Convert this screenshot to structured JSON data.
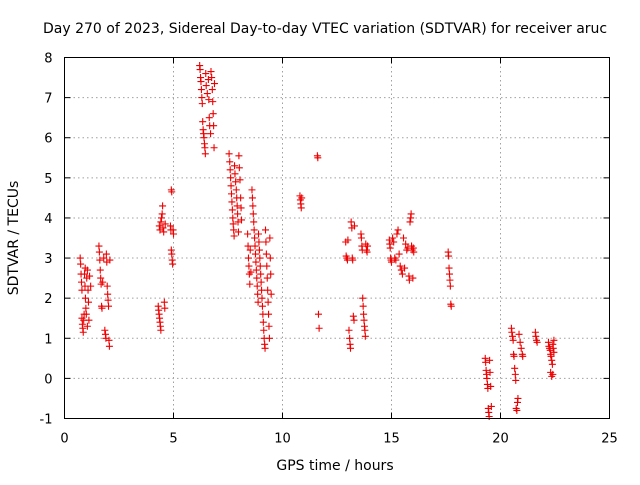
{
  "colors": {
    "series": "#ee0000",
    "grid": "#a0a0a0",
    "axis": "#000000",
    "background": "#ffffff"
  },
  "chart_data": {
    "type": "scatter",
    "title": "Day 270 of 2023, Sidereal Day-to-day VTEC variation (SDTVAR) for receiver aruc",
    "xlabel": "GPS time / hours",
    "ylabel": "SDTVAR / TECUs",
    "xlim": [
      0,
      25
    ],
    "ylim": [
      -1,
      8
    ],
    "xticks": [
      0,
      5,
      10,
      15,
      20,
      25
    ],
    "yticks": [
      -1,
      0,
      1,
      2,
      3,
      4,
      5,
      6,
      7,
      8
    ],
    "grid": true,
    "marker": "plus",
    "series": [
      {
        "name": "SDTVAR",
        "points": [
          [
            0.72,
            3.0
          ],
          [
            0.74,
            2.85
          ],
          [
            0.76,
            2.6
          ],
          [
            0.78,
            2.4
          ],
          [
            0.8,
            2.2
          ],
          [
            0.8,
            1.5
          ],
          [
            0.82,
            1.35
          ],
          [
            0.84,
            1.25
          ],
          [
            0.86,
            1.15
          ],
          [
            0.88,
            1.45
          ],
          [
            0.9,
            1.6
          ],
          [
            0.92,
            2.6
          ],
          [
            0.94,
            2.3
          ],
          [
            0.96,
            2.0
          ],
          [
            0.98,
            1.75
          ],
          [
            1.0,
            1.6
          ],
          [
            1.02,
            2.5
          ],
          [
            1.05,
            2.7
          ],
          [
            1.08,
            2.2
          ],
          [
            1.1,
            1.9
          ],
          [
            1.12,
            1.45
          ],
          [
            1.15,
            2.55
          ],
          [
            1.2,
            2.3
          ],
          [
            0.95,
            2.75
          ],
          [
            1.05,
            1.3
          ],
          [
            1.58,
            3.3
          ],
          [
            1.6,
            3.15
          ],
          [
            1.62,
            2.95
          ],
          [
            1.64,
            2.7
          ],
          [
            1.66,
            2.5
          ],
          [
            1.68,
            2.35
          ],
          [
            1.7,
            1.8
          ],
          [
            1.72,
            1.75
          ],
          [
            1.85,
            1.2
          ],
          [
            1.88,
            1.1
          ],
          [
            1.9,
            1.0
          ],
          [
            1.92,
            3.1
          ],
          [
            1.94,
            2.9
          ],
          [
            1.96,
            2.3
          ],
          [
            1.98,
            2.1
          ],
          [
            2.0,
            1.95
          ],
          [
            2.02,
            1.8
          ],
          [
            2.04,
            0.95
          ],
          [
            2.06,
            0.8
          ],
          [
            2.08,
            2.95
          ],
          [
            1.8,
            3.0
          ],
          [
            1.75,
            2.4
          ],
          [
            4.3,
            1.8
          ],
          [
            4.32,
            1.7
          ],
          [
            4.34,
            1.6
          ],
          [
            4.36,
            1.5
          ],
          [
            4.38,
            1.4
          ],
          [
            4.4,
            1.3
          ],
          [
            4.42,
            1.2
          ],
          [
            4.35,
            3.8
          ],
          [
            4.38,
            3.7
          ],
          [
            4.42,
            3.9
          ],
          [
            4.45,
            4.0
          ],
          [
            4.48,
            4.1
          ],
          [
            4.5,
            4.3
          ],
          [
            4.52,
            3.75
          ],
          [
            4.55,
            3.65
          ],
          [
            4.58,
            1.9
          ],
          [
            4.6,
            1.75
          ],
          [
            4.62,
            3.85
          ],
          [
            4.9,
            4.7
          ],
          [
            4.92,
            4.65
          ],
          [
            4.86,
            3.8
          ],
          [
            4.88,
            3.7
          ],
          [
            4.9,
            3.2
          ],
          [
            4.92,
            3.1
          ],
          [
            4.94,
            2.95
          ],
          [
            4.96,
            2.85
          ],
          [
            4.98,
            3.7
          ],
          [
            5.0,
            3.6
          ],
          [
            6.2,
            7.8
          ],
          [
            6.22,
            7.7
          ],
          [
            6.24,
            7.5
          ],
          [
            6.26,
            7.4
          ],
          [
            6.28,
            7.2
          ],
          [
            6.3,
            7.0
          ],
          [
            6.32,
            6.85
          ],
          [
            6.34,
            6.4
          ],
          [
            6.36,
            6.2
          ],
          [
            6.38,
            6.1
          ],
          [
            6.4,
            6.0
          ],
          [
            6.42,
            5.85
          ],
          [
            6.44,
            5.75
          ],
          [
            6.46,
            5.6
          ],
          [
            6.48,
            7.6
          ],
          [
            6.5,
            7.3
          ],
          [
            6.55,
            7.1
          ],
          [
            6.6,
            7.45
          ],
          [
            6.62,
            6.95
          ],
          [
            6.64,
            6.5
          ],
          [
            6.66,
            6.3
          ],
          [
            6.7,
            6.1
          ],
          [
            6.72,
            7.65
          ],
          [
            6.75,
            7.5
          ],
          [
            6.78,
            7.2
          ],
          [
            6.8,
            6.9
          ],
          [
            6.82,
            6.6
          ],
          [
            6.84,
            6.3
          ],
          [
            6.86,
            5.75
          ],
          [
            6.88,
            7.35
          ],
          [
            7.55,
            5.6
          ],
          [
            7.58,
            5.4
          ],
          [
            7.6,
            5.2
          ],
          [
            7.62,
            5.0
          ],
          [
            7.64,
            4.8
          ],
          [
            7.66,
            4.6
          ],
          [
            7.68,
            4.4
          ],
          [
            7.7,
            4.2
          ],
          [
            7.72,
            4.0
          ],
          [
            7.74,
            3.85
          ],
          [
            7.76,
            3.7
          ],
          [
            7.78,
            3.55
          ],
          [
            7.8,
            5.3
          ],
          [
            7.82,
            5.1
          ],
          [
            7.85,
            4.9
          ],
          [
            7.88,
            4.7
          ],
          [
            7.9,
            4.5
          ],
          [
            7.92,
            4.3
          ],
          [
            7.94,
            4.1
          ],
          [
            7.96,
            3.9
          ],
          [
            7.98,
            3.65
          ],
          [
            8.0,
            5.55
          ],
          [
            8.02,
            5.25
          ],
          [
            8.05,
            4.95
          ],
          [
            8.08,
            4.5
          ],
          [
            8.1,
            4.25
          ],
          [
            8.12,
            3.95
          ],
          [
            8.4,
            3.6
          ],
          [
            8.42,
            3.3
          ],
          [
            8.44,
            3.0
          ],
          [
            8.46,
            2.8
          ],
          [
            8.48,
            2.6
          ],
          [
            8.5,
            2.35
          ],
          [
            8.52,
            3.2
          ],
          [
            8.55,
            2.65
          ],
          [
            8.6,
            4.7
          ],
          [
            8.62,
            4.5
          ],
          [
            8.64,
            4.3
          ],
          [
            8.66,
            4.1
          ],
          [
            8.68,
            3.9
          ],
          [
            8.7,
            3.7
          ],
          [
            8.72,
            3.5
          ],
          [
            8.74,
            3.3
          ],
          [
            8.76,
            3.1
          ],
          [
            8.78,
            2.9
          ],
          [
            8.8,
            2.7
          ],
          [
            8.82,
            2.5
          ],
          [
            8.84,
            2.3
          ],
          [
            8.86,
            2.1
          ],
          [
            8.88,
            1.9
          ],
          [
            8.9,
            3.6
          ],
          [
            8.92,
            3.4
          ],
          [
            8.94,
            3.2
          ],
          [
            8.96,
            3.0
          ],
          [
            8.98,
            2.8
          ],
          [
            9.0,
            2.6
          ],
          [
            9.02,
            2.4
          ],
          [
            9.04,
            2.2
          ],
          [
            9.06,
            2.0
          ],
          [
            9.08,
            1.8
          ],
          [
            9.1,
            1.6
          ],
          [
            9.12,
            1.4
          ],
          [
            9.14,
            1.2
          ],
          [
            9.16,
            1.0
          ],
          [
            9.18,
            0.85
          ],
          [
            9.2,
            0.75
          ],
          [
            9.22,
            3.7
          ],
          [
            9.24,
            3.4
          ],
          [
            9.26,
            3.1
          ],
          [
            9.28,
            2.8
          ],
          [
            9.3,
            2.5
          ],
          [
            9.32,
            2.2
          ],
          [
            9.34,
            1.9
          ],
          [
            9.36,
            1.6
          ],
          [
            9.38,
            1.3
          ],
          [
            9.4,
            1.0
          ],
          [
            9.42,
            3.5
          ],
          [
            9.44,
            3.0
          ],
          [
            9.46,
            2.6
          ],
          [
            9.48,
            2.1
          ],
          [
            10.8,
            4.55
          ],
          [
            10.82,
            4.45
          ],
          [
            10.84,
            4.35
          ],
          [
            10.86,
            4.25
          ],
          [
            10.88,
            4.5
          ],
          [
            11.6,
            5.55
          ],
          [
            11.62,
            5.5
          ],
          [
            11.65,
            1.6
          ],
          [
            11.68,
            1.25
          ],
          [
            12.9,
            3.4
          ],
          [
            12.92,
            3.05
          ],
          [
            12.95,
            3.0
          ],
          [
            12.98,
            2.95
          ],
          [
            13.0,
            3.45
          ],
          [
            13.05,
            1.2
          ],
          [
            13.08,
            1.0
          ],
          [
            13.1,
            0.85
          ],
          [
            13.12,
            0.75
          ],
          [
            13.15,
            3.9
          ],
          [
            13.18,
            3.75
          ],
          [
            13.2,
            3.0
          ],
          [
            13.22,
            2.95
          ],
          [
            13.25,
            1.55
          ],
          [
            13.28,
            1.45
          ],
          [
            13.3,
            3.8
          ],
          [
            13.6,
            3.6
          ],
          [
            13.62,
            3.5
          ],
          [
            13.64,
            3.3
          ],
          [
            13.66,
            3.2
          ],
          [
            13.68,
            2.0
          ],
          [
            13.7,
            1.8
          ],
          [
            13.72,
            1.6
          ],
          [
            13.74,
            1.45
          ],
          [
            13.76,
            1.3
          ],
          [
            13.78,
            1.2
          ],
          [
            13.8,
            1.05
          ],
          [
            13.82,
            3.35
          ],
          [
            13.85,
            3.2
          ],
          [
            13.88,
            3.15
          ],
          [
            13.9,
            3.3
          ],
          [
            14.9,
            3.45
          ],
          [
            14.92,
            3.35
          ],
          [
            14.94,
            3.25
          ],
          [
            14.96,
            3.0
          ],
          [
            14.98,
            2.95
          ],
          [
            15.0,
            2.9
          ],
          [
            15.05,
            3.5
          ],
          [
            15.1,
            3.4
          ],
          [
            15.15,
            3.0
          ],
          [
            15.2,
            2.95
          ],
          [
            15.25,
            3.6
          ],
          [
            15.3,
            3.7
          ],
          [
            15.35,
            3.1
          ],
          [
            15.4,
            2.8
          ],
          [
            15.45,
            2.7
          ],
          [
            15.5,
            2.6
          ],
          [
            15.55,
            3.5
          ],
          [
            15.6,
            2.75
          ],
          [
            15.65,
            3.35
          ],
          [
            15.7,
            3.2
          ],
          [
            15.75,
            3.25
          ],
          [
            15.8,
            2.55
          ],
          [
            15.82,
            2.45
          ],
          [
            15.85,
            3.9
          ],
          [
            15.88,
            4.0
          ],
          [
            15.9,
            4.1
          ],
          [
            15.92,
            3.3
          ],
          [
            15.95,
            3.2
          ],
          [
            15.98,
            2.5
          ],
          [
            16.0,
            3.25
          ],
          [
            16.02,
            3.15
          ],
          [
            17.6,
            3.15
          ],
          [
            17.62,
            3.05
          ],
          [
            17.64,
            2.75
          ],
          [
            17.66,
            2.6
          ],
          [
            17.68,
            2.45
          ],
          [
            17.7,
            2.3
          ],
          [
            17.72,
            1.85
          ],
          [
            17.74,
            1.8
          ],
          [
            19.3,
            0.5
          ],
          [
            19.32,
            0.4
          ],
          [
            19.34,
            0.2
          ],
          [
            19.36,
            0.1
          ],
          [
            19.38,
            0.0
          ],
          [
            19.4,
            -0.15
          ],
          [
            19.42,
            -0.25
          ],
          [
            19.44,
            -0.75
          ],
          [
            19.46,
            -0.85
          ],
          [
            19.48,
            -0.95
          ],
          [
            19.5,
            0.45
          ],
          [
            19.52,
            0.15
          ],
          [
            19.55,
            -0.2
          ],
          [
            19.58,
            -0.7
          ],
          [
            20.5,
            1.25
          ],
          [
            20.52,
            1.15
          ],
          [
            20.55,
            1.05
          ],
          [
            20.58,
            0.95
          ],
          [
            20.6,
            0.6
          ],
          [
            20.62,
            0.55
          ],
          [
            20.65,
            0.25
          ],
          [
            20.68,
            0.1
          ],
          [
            20.7,
            -0.05
          ],
          [
            20.72,
            -0.75
          ],
          [
            20.75,
            -0.8
          ],
          [
            20.78,
            -0.6
          ],
          [
            20.8,
            -0.5
          ],
          [
            20.85,
            1.1
          ],
          [
            20.9,
            0.9
          ],
          [
            20.95,
            0.75
          ],
          [
            21.0,
            0.6
          ],
          [
            21.02,
            0.55
          ],
          [
            21.6,
            1.15
          ],
          [
            21.62,
            1.05
          ],
          [
            21.65,
            0.95
          ],
          [
            21.68,
            0.9
          ],
          [
            22.2,
            0.9
          ],
          [
            22.22,
            0.8
          ],
          [
            22.25,
            0.75
          ],
          [
            22.28,
            0.7
          ],
          [
            22.3,
            0.6
          ],
          [
            22.32,
            0.55
          ],
          [
            22.35,
            0.45
          ],
          [
            22.38,
            0.35
          ],
          [
            22.4,
            0.85
          ],
          [
            22.42,
            0.75
          ],
          [
            22.45,
            0.65
          ],
          [
            22.3,
            0.15
          ],
          [
            22.35,
            0.05
          ],
          [
            22.4,
            0.1
          ],
          [
            22.45,
            0.95
          ]
        ]
      }
    ]
  }
}
